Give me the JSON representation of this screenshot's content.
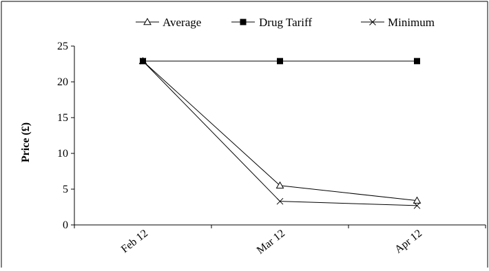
{
  "chart_data": {
    "type": "line",
    "title": "",
    "xlabel": "",
    "ylabel": "Price (£)",
    "categories": [
      "Feb 12",
      "Mar 12",
      "Apr 12"
    ],
    "ylim": [
      0,
      25
    ],
    "yticks": [
      0,
      5,
      10,
      15,
      20,
      25
    ],
    "grid": false,
    "legend_position": "top",
    "series": [
      {
        "name": "Average",
        "marker": "triangle-open",
        "color": "#000000",
        "values": [
          22.9,
          5.5,
          3.4
        ]
      },
      {
        "name": "Drug Tariff",
        "marker": "square-filled",
        "color": "#000000",
        "values": [
          22.9,
          22.9,
          22.9
        ]
      },
      {
        "name": "Minimum",
        "marker": "x",
        "color": "#000000",
        "values": [
          22.9,
          3.3,
          2.7
        ]
      }
    ]
  }
}
